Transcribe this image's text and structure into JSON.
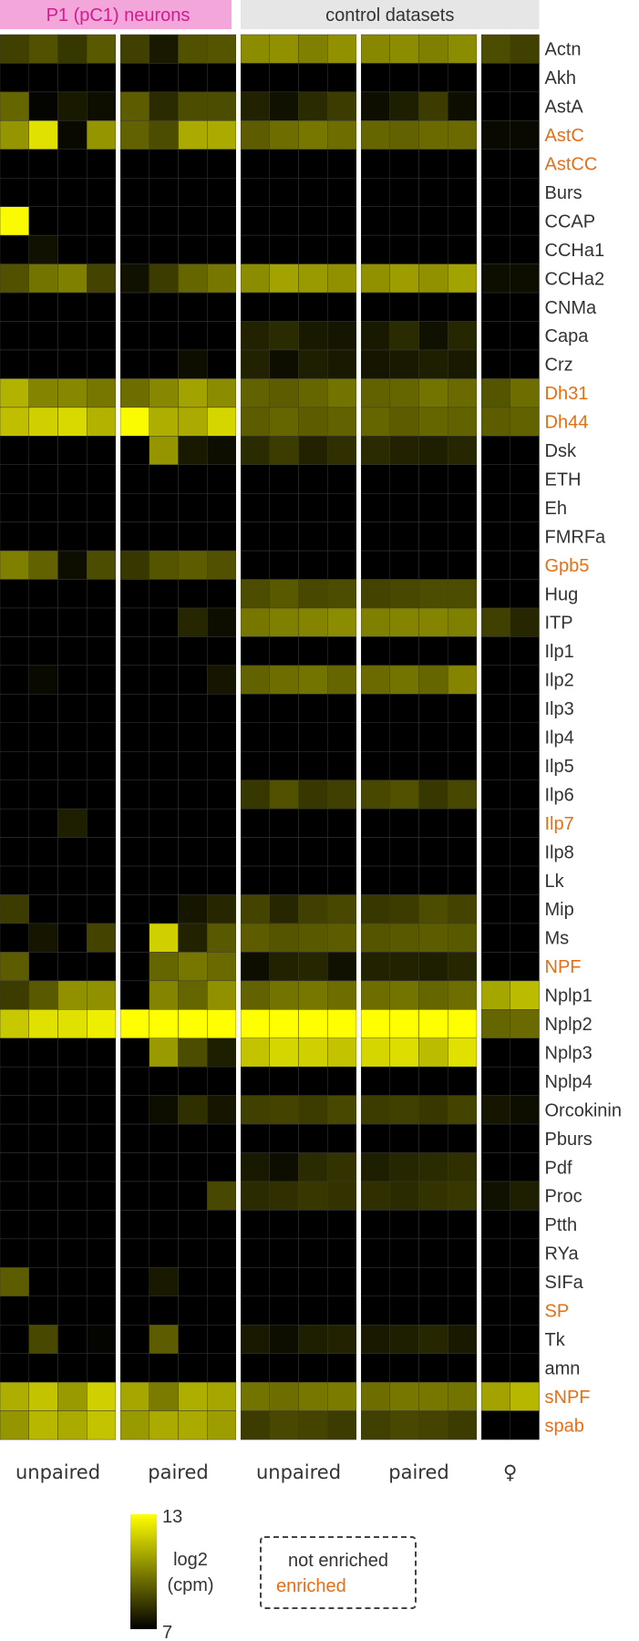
{
  "chart_data": {
    "type": "heatmap",
    "header_groups": [
      {
        "label": "P1 (pC1) neurons",
        "color": "#f2a6d9",
        "text_color": "#d6198f"
      },
      {
        "label": "control datasets",
        "color": "#e6e6e6",
        "text_color": "#333333"
      }
    ],
    "column_groups": [
      "unpaired",
      "paired",
      "unpaired",
      "paired",
      "♀"
    ],
    "column_group_sizes": [
      4,
      4,
      4,
      4,
      2
    ],
    "rows": [
      "Actn",
      "Akh",
      "AstA",
      "AstC",
      "AstCC",
      "Burs",
      "CCAP",
      "CCHa1",
      "CCHa2",
      "CNMa",
      "Capa",
      "Crz",
      "Dh31",
      "Dh44",
      "Dsk",
      "ETH",
      "Eh",
      "FMRFa",
      "Gpb5",
      "Hug",
      "ITP",
      "Ilp1",
      "Ilp2",
      "Ilp3",
      "Ilp4",
      "Ilp5",
      "Ilp6",
      "Ilp7",
      "Ilp8",
      "Lk",
      "Mip",
      "Ms",
      "NPF",
      "Nplp1",
      "Nplp2",
      "Nplp3",
      "Nplp4",
      "Orcokinin",
      "Pburs",
      "Pdf",
      "Proc",
      "Ptth",
      "RYa",
      "SIFa",
      "SP",
      "Tk",
      "amn",
      "sNPF",
      "spab"
    ],
    "enriched": [
      "AstC",
      "AstCC",
      "Dh31",
      "Dh44",
      "Gpb5",
      "Ilp7",
      "NPF",
      "SP",
      "sNPF",
      "spab"
    ],
    "values": [
      [
        8.5,
        8.9,
        8.3,
        9.1,
        8.5,
        7.6,
        8.9,
        9.0,
        10.3,
        10.4,
        10.0,
        10.4,
        10.2,
        10.3,
        10.0,
        10.3,
        8.8,
        8.5
      ],
      [
        7,
        7,
        7,
        7,
        7,
        7,
        7,
        7,
        7,
        7,
        7,
        7,
        7,
        7,
        7,
        7,
        7,
        7
      ],
      [
        9.4,
        7.1,
        7.6,
        7.3,
        9.2,
        8.0,
        8.8,
        8.8,
        7.8,
        7.4,
        8.0,
        8.4,
        7.3,
        7.7,
        8.4,
        7.3,
        7,
        7
      ],
      [
        10.5,
        12.3,
        7.2,
        10.5,
        9.3,
        8.8,
        11.0,
        11.0,
        9.2,
        9.6,
        9.8,
        9.6,
        9.4,
        9.3,
        9.5,
        9.5,
        7.2,
        7.2
      ],
      [
        7,
        7,
        7,
        7,
        7,
        7,
        7,
        7,
        7,
        7,
        7,
        7,
        7,
        7,
        7,
        7,
        7,
        7
      ],
      [
        7,
        7,
        7,
        7,
        7,
        7,
        7,
        7,
        7,
        7,
        7,
        7,
        7,
        7,
        7,
        7,
        7,
        7
      ],
      [
        12.9,
        7,
        7,
        7,
        7,
        7,
        7,
        7,
        7,
        7,
        7,
        7,
        7,
        7,
        7,
        7,
        7,
        7
      ],
      [
        7,
        7.4,
        7,
        7,
        7,
        7,
        7,
        7,
        7,
        7,
        7,
        7,
        7,
        7,
        7,
        7,
        7,
        7
      ],
      [
        8.9,
        9.7,
        10.0,
        8.6,
        7.4,
        8.4,
        9.4,
        9.8,
        10.3,
        10.8,
        10.6,
        10.4,
        10.4,
        10.7,
        10.4,
        10.8,
        7.3,
        7.3
      ],
      [
        7,
        7,
        7,
        7,
        7,
        7,
        7,
        7,
        7,
        7,
        7,
        7,
        7,
        7,
        7,
        7,
        7,
        7
      ],
      [
        7,
        7,
        7,
        7,
        7,
        7,
        7,
        7,
        7.8,
        8.0,
        7.6,
        7.5,
        7.6,
        8.0,
        7.4,
        7.9,
        7,
        7
      ],
      [
        7,
        7,
        7,
        7,
        7,
        7,
        7.3,
        7,
        7.8,
        7.3,
        7.7,
        7.6,
        7.5,
        7.6,
        7.7,
        7.6,
        7,
        7
      ],
      [
        11.2,
        10.1,
        10.2,
        9.8,
        9.6,
        10.2,
        10.8,
        10.3,
        9.3,
        9.2,
        9.4,
        9.7,
        9.3,
        9.4,
        9.7,
        9.5,
        9.0,
        9.6
      ],
      [
        11.5,
        11.9,
        12.1,
        11.2,
        12.9,
        11.1,
        11.0,
        12.0,
        9.2,
        9.4,
        9.2,
        9.3,
        9.4,
        9.2,
        9.4,
        9.3,
        9.2,
        9.3
      ],
      [
        7,
        7,
        7,
        7,
        7,
        10.5,
        7.6,
        7.3,
        8.0,
        8.4,
        7.8,
        8.1,
        8.0,
        7.8,
        7.7,
        7.9,
        7,
        7
      ],
      [
        7,
        7,
        7,
        7,
        7,
        7,
        7,
        7,
        7,
        7,
        7,
        7,
        7,
        7,
        7,
        7,
        7,
        7
      ],
      [
        7,
        7,
        7,
        7,
        7,
        7,
        7,
        7,
        7,
        7,
        7,
        7,
        7,
        7,
        7,
        7,
        7,
        7
      ],
      [
        7,
        7,
        7,
        7,
        7,
        7,
        7,
        7,
        7,
        7,
        7,
        7,
        7,
        7,
        7,
        7,
        7,
        7
      ],
      [
        10.0,
        9.3,
        7.3,
        8.8,
        8.3,
        9.0,
        9.2,
        8.9,
        7,
        7,
        7,
        7,
        7,
        7,
        7,
        7,
        7,
        7
      ],
      [
        7,
        7,
        7,
        7,
        7,
        7,
        7,
        7,
        8.8,
        9.1,
        8.7,
        8.8,
        8.6,
        8.7,
        8.8,
        8.8,
        7,
        7
      ],
      [
        7,
        7,
        7,
        7,
        7,
        7,
        7.9,
        7.3,
        9.8,
        10.0,
        10.1,
        10.3,
        10.0,
        10.1,
        10.1,
        10.0,
        8.5,
        7.9
      ],
      [
        7,
        7,
        7,
        7,
        7,
        7,
        7,
        7,
        7,
        7,
        7,
        7,
        7,
        7,
        7,
        7,
        7,
        7
      ],
      [
        7,
        7.2,
        7,
        7,
        7,
        7,
        7,
        7.5,
        9.3,
        9.6,
        9.7,
        9.4,
        9.5,
        9.7,
        9.4,
        10.1,
        7,
        7
      ],
      [
        7,
        7,
        7,
        7,
        7,
        7,
        7,
        7,
        7,
        7,
        7,
        7,
        7,
        7,
        7,
        7,
        7,
        7
      ],
      [
        7,
        7,
        7,
        7,
        7,
        7,
        7,
        7,
        7,
        7,
        7,
        7,
        7,
        7,
        7,
        7,
        7,
        7
      ],
      [
        7,
        7,
        7,
        7,
        7,
        7,
        7,
        7,
        7,
        7,
        7,
        7,
        7,
        7,
        7,
        7,
        7,
        7
      ],
      [
        7,
        7,
        7,
        7,
        7,
        7,
        7,
        7,
        8.3,
        8.9,
        8.3,
        8.5,
        8.7,
        8.9,
        8.3,
        8.7,
        7,
        7
      ],
      [
        7,
        7,
        7.7,
        7,
        7,
        7,
        7,
        7,
        7,
        7,
        7,
        7,
        7,
        7,
        7,
        7,
        7,
        7
      ],
      [
        7,
        7,
        7,
        7,
        7,
        7,
        7,
        7,
        7,
        7,
        7,
        7,
        7,
        7,
        7,
        7,
        7,
        7
      ],
      [
        7,
        7,
        7,
        7,
        7,
        7,
        7,
        7,
        7,
        7,
        7,
        7,
        7,
        7,
        7,
        7,
        7,
        7
      ],
      [
        8.4,
        7,
        7,
        7,
        7,
        7,
        7.5,
        7.9,
        8.6,
        7.9,
        8.5,
        8.7,
        8.3,
        8.4,
        8.8,
        8.6,
        7,
        7
      ],
      [
        7,
        7.5,
        7,
        8.6,
        7,
        11.9,
        7.8,
        9.1,
        9.2,
        9.0,
        9.1,
        9.2,
        9.0,
        9.1,
        9.2,
        9.1,
        7,
        7
      ],
      [
        9.2,
        7,
        7,
        7,
        7,
        9.4,
        9.8,
        9.5,
        7.3,
        7.8,
        7.9,
        7.4,
        7.8,
        7.8,
        7.7,
        7.9,
        7,
        7
      ],
      [
        8.4,
        9.1,
        10.4,
        10.4,
        7,
        10.1,
        9.4,
        10.4,
        9.3,
        9.7,
        9.8,
        9.6,
        9.6,
        9.7,
        9.4,
        9.6,
        10.9,
        11.4
      ],
      [
        11.7,
        12.3,
        12.3,
        12.6,
        13,
        13,
        13,
        13,
        13,
        13,
        13,
        13,
        13,
        13,
        13,
        13,
        9.4,
        9.5
      ],
      [
        7,
        7,
        7,
        7,
        7,
        10.6,
        8.8,
        7.7,
        11.6,
        12.0,
        11.9,
        11.6,
        12.0,
        12.2,
        11.4,
        12.3,
        7,
        7
      ],
      [
        7,
        7,
        7,
        7,
        7,
        7,
        7,
        7,
        7,
        7,
        7,
        7,
        7,
        7,
        7,
        7,
        7,
        7
      ],
      [
        7,
        7,
        7,
        7,
        7,
        7.3,
        8.1,
        7.5,
        8.5,
        8.6,
        8.4,
        8.7,
        8.4,
        8.5,
        8.3,
        8.6,
        7.5,
        7.3
      ],
      [
        7,
        7,
        7,
        7,
        7,
        7,
        7,
        7,
        7,
        7,
        7,
        7,
        7,
        7,
        7,
        7,
        7,
        7
      ],
      [
        7,
        7,
        7,
        7,
        7,
        7,
        7,
        7,
        7.6,
        7.3,
        8.0,
        8.2,
        7.7,
        7.9,
        8.0,
        8.1,
        7,
        7
      ],
      [
        7,
        7,
        7,
        7,
        7,
        7,
        7,
        8.7,
        8.0,
        8.1,
        8.3,
        8.2,
        8.1,
        8.0,
        8.2,
        8.3,
        7.4,
        7.7
      ],
      [
        7,
        7,
        7,
        7,
        7,
        7,
        7,
        7,
        7,
        7,
        7,
        7,
        7,
        7,
        7,
        7,
        7,
        7
      ],
      [
        7,
        7,
        7,
        7,
        7,
        7,
        7,
        7,
        7,
        7,
        7,
        7,
        7,
        7,
        7,
        7,
        7,
        7
      ],
      [
        9.2,
        7,
        7,
        7,
        7,
        7.6,
        7,
        7,
        7,
        7,
        7,
        7,
        7,
        7,
        7,
        7,
        7,
        7
      ],
      [
        7,
        7,
        7,
        7,
        7,
        7,
        7,
        7,
        7,
        7,
        7,
        7,
        7,
        7,
        7,
        7,
        7,
        7
      ],
      [
        7,
        8.7,
        7,
        7.1,
        7,
        9.2,
        7,
        7,
        7.6,
        7.3,
        7.7,
        7.8,
        7.6,
        7.7,
        7.9,
        7.6,
        7,
        7
      ],
      [
        7,
        7,
        7,
        7,
        7,
        7,
        7,
        7,
        7,
        7,
        7,
        7,
        7,
        7,
        7,
        7,
        7,
        7
      ],
      [
        11.1,
        11.6,
        10.6,
        11.9,
        10.9,
        9.9,
        11.1,
        10.9,
        9.7,
        9.6,
        9.8,
        9.9,
        9.6,
        9.8,
        9.8,
        9.7,
        10.8,
        11.3
      ],
      [
        10.5,
        11.3,
        11.0,
        11.6,
        10.6,
        11.0,
        11.0,
        10.7,
        8.4,
        8.7,
        8.6,
        8.4,
        8.5,
        8.7,
        8.6,
        8.4,
        7,
        7
      ]
    ],
    "colorbar": {
      "min": 7,
      "max": 13,
      "label_line1": "log2",
      "label_line2": "(cpm)",
      "min_label": "7",
      "max_label": "13"
    },
    "legend": {
      "not_enriched": "not enriched",
      "enriched": "enriched",
      "not_enriched_color": "#333333",
      "enriched_color": "#e46f16"
    },
    "colormap": [
      "#000000",
      "#ffff00"
    ]
  }
}
